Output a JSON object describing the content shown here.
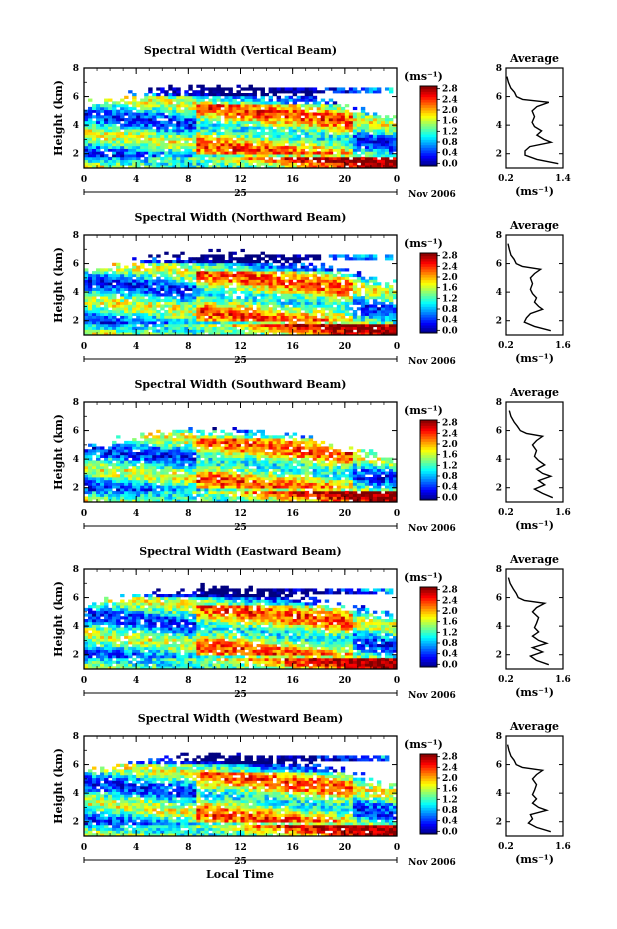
{
  "figure": {
    "xlabel": "Local Time",
    "ylabel": "Height (km)",
    "date_day": "25",
    "date_month": "Nov 2006",
    "cbar_unit": "(ms⁻¹)",
    "avg_title": "Average",
    "avg_unit": "(ms⁻¹)"
  },
  "chart_data": [
    {
      "type": "heatmap",
      "title": "Spectral Width (Vertical Beam)",
      "xlabel": "",
      "ylabel": "Height (km)",
      "x_ticks": [
        "0",
        "4",
        "8",
        "12",
        "16",
        "20",
        "0"
      ],
      "xlim": [
        0,
        24
      ],
      "ylim": [
        1,
        8
      ],
      "y_ticks": [
        "2",
        "4",
        "6",
        "8"
      ],
      "colorbar_ticks": [
        "0.0",
        "0.4",
        "0.8",
        "1.2",
        "1.6",
        "2.0",
        "2.4",
        "2.8"
      ],
      "colorbar_range": [
        0,
        3.0
      ],
      "average_profile": {
        "title": "Average",
        "xlabel": "(ms⁻¹)",
        "x_ticks": [
          "0.2",
          "1.4"
        ],
        "xlim": [
          0.2,
          1.4
        ],
        "y_ticks": [
          "2",
          "4",
          "6",
          "8"
        ],
        "ylim": [
          1,
          8
        ],
        "heights": [
          1.3,
          1.6,
          1.9,
          2.2,
          2.5,
          2.8,
          3.0,
          3.3,
          3.6,
          3.9,
          4.2,
          4.6,
          5.0,
          5.3,
          5.6,
          5.8,
          6.0,
          6.3,
          6.6,
          7.0,
          7.4
        ],
        "values": [
          1.3,
          0.85,
          0.6,
          0.6,
          0.7,
          1.15,
          1.0,
          0.85,
          0.95,
          0.8,
          0.75,
          0.8,
          0.75,
          0.85,
          1.1,
          0.55,
          0.42,
          0.38,
          0.3,
          0.25,
          0.22
        ]
      }
    },
    {
      "type": "heatmap",
      "title": "Spectral Width (Northward Beam)",
      "xlabel": "",
      "ylabel": "Height (km)",
      "x_ticks": [
        "0",
        "4",
        "8",
        "12",
        "16",
        "20",
        "0"
      ],
      "xlim": [
        0,
        24
      ],
      "ylim": [
        1,
        8
      ],
      "y_ticks": [
        "2",
        "4",
        "6",
        "8"
      ],
      "colorbar_ticks": [
        "0.0",
        "0.4",
        "0.8",
        "1.2",
        "1.6",
        "2.0",
        "2.4",
        "2.8"
      ],
      "colorbar_range": [
        0,
        3.0
      ],
      "average_profile": {
        "title": "Average",
        "xlabel": "(ms⁻¹)",
        "x_ticks": [
          "0.2",
          "1.6"
        ],
        "xlim": [
          0.2,
          1.6
        ],
        "y_ticks": [
          "2",
          "4",
          "6",
          "8"
        ],
        "ylim": [
          1,
          8
        ],
        "heights": [
          1.3,
          1.6,
          1.9,
          2.2,
          2.5,
          2.8,
          3.0,
          3.3,
          3.6,
          3.9,
          4.2,
          4.6,
          5.0,
          5.3,
          5.6,
          5.8,
          6.0,
          6.3,
          6.6,
          7.0,
          7.4
        ],
        "values": [
          1.3,
          0.9,
          0.65,
          0.7,
          0.8,
          1.1,
          1.0,
          0.9,
          0.95,
          0.85,
          0.8,
          0.85,
          0.8,
          0.9,
          1.05,
          0.6,
          0.45,
          0.4,
          0.32,
          0.28,
          0.25
        ]
      }
    },
    {
      "type": "heatmap",
      "title": "Spectral Width (Southward Beam)",
      "xlabel": "",
      "ylabel": "Height (km)",
      "x_ticks": [
        "0",
        "4",
        "8",
        "12",
        "16",
        "20",
        "0"
      ],
      "xlim": [
        0,
        24
      ],
      "ylim": [
        1,
        8
      ],
      "y_ticks": [
        "2",
        "4",
        "6",
        "8"
      ],
      "colorbar_ticks": [
        "0.0",
        "0.4",
        "0.8",
        "1.2",
        "1.6",
        "2.0",
        "2.4",
        "2.8"
      ],
      "colorbar_range": [
        0,
        3.0
      ],
      "average_profile": {
        "title": "Average",
        "xlabel": "(ms⁻¹)",
        "x_ticks": [
          "0.2",
          "1.6"
        ],
        "xlim": [
          0.2,
          1.6
        ],
        "y_ticks": [
          "2",
          "4",
          "6",
          "8"
        ],
        "ylim": [
          1,
          8
        ],
        "heights": [
          1.3,
          1.6,
          1.9,
          2.2,
          2.5,
          2.8,
          3.0,
          3.3,
          3.6,
          3.9,
          4.2,
          4.6,
          5.0,
          5.3,
          5.6,
          5.8,
          6.0,
          6.3,
          6.6,
          7.0,
          7.4
        ],
        "values": [
          1.35,
          1.1,
          0.9,
          1.15,
          1.0,
          1.3,
          1.1,
          0.95,
          1.15,
          1.0,
          0.9,
          0.95,
          0.85,
          0.95,
          1.1,
          0.7,
          0.55,
          0.48,
          0.4,
          0.32,
          0.28
        ]
      }
    },
    {
      "type": "heatmap",
      "title": "Spectral Width (Eastward Beam)",
      "xlabel": "",
      "ylabel": "Height (km)",
      "x_ticks": [
        "0",
        "4",
        "8",
        "12",
        "16",
        "20",
        "0"
      ],
      "xlim": [
        0,
        24
      ],
      "ylim": [
        1,
        8
      ],
      "y_ticks": [
        "2",
        "4",
        "6",
        "8"
      ],
      "colorbar_ticks": [
        "0.0",
        "0.4",
        "0.8",
        "1.2",
        "1.6",
        "2.0",
        "2.4",
        "2.8"
      ],
      "colorbar_range": [
        0,
        3.0
      ],
      "average_profile": {
        "title": "Average",
        "xlabel": "(ms⁻¹)",
        "x_ticks": [
          "0.2",
          "1.6"
        ],
        "xlim": [
          0.2,
          1.6
        ],
        "y_ticks": [
          "2",
          "4",
          "6",
          "8"
        ],
        "ylim": [
          1,
          8
        ],
        "heights": [
          1.3,
          1.6,
          1.9,
          2.2,
          2.5,
          2.8,
          3.0,
          3.3,
          3.6,
          3.9,
          4.2,
          4.6,
          5.0,
          5.3,
          5.6,
          5.8,
          6.0,
          6.3,
          6.6,
          7.0,
          7.4
        ],
        "values": [
          1.25,
          0.95,
          0.8,
          1.1,
          0.85,
          1.2,
          1.0,
          0.85,
          1.0,
          0.9,
          0.95,
          1.0,
          0.85,
          0.95,
          1.15,
          0.65,
          0.5,
          0.45,
          0.38,
          0.3,
          0.26
        ]
      }
    },
    {
      "type": "heatmap",
      "title": "Spectral Width (Westward Beam)",
      "xlabel": "Local Time",
      "ylabel": "Height (km)",
      "x_ticks": [
        "0",
        "4",
        "8",
        "12",
        "16",
        "20",
        "0"
      ],
      "xlim": [
        0,
        24
      ],
      "ylim": [
        1,
        8
      ],
      "y_ticks": [
        "2",
        "4",
        "6",
        "8"
      ],
      "colorbar_ticks": [
        "0.0",
        "0.4",
        "0.8",
        "1.2",
        "1.6",
        "2.0",
        "2.4",
        "2.8"
      ],
      "colorbar_range": [
        0,
        3.0
      ],
      "average_profile": {
        "title": "Average",
        "xlabel": "(ms⁻¹)",
        "x_ticks": [
          "0.2",
          "1.6"
        ],
        "xlim": [
          0.2,
          1.6
        ],
        "y_ticks": [
          "2",
          "4",
          "6",
          "8"
        ],
        "ylim": [
          1,
          8
        ],
        "heights": [
          1.3,
          1.6,
          1.9,
          2.2,
          2.5,
          2.8,
          3.0,
          3.3,
          3.6,
          3.9,
          4.2,
          4.6,
          5.0,
          5.3,
          5.6,
          5.8,
          6.0,
          6.3,
          6.6,
          7.0,
          7.4
        ],
        "values": [
          1.3,
          0.95,
          0.75,
          0.85,
          0.8,
          1.2,
          1.0,
          0.85,
          0.95,
          0.85,
          0.9,
          0.95,
          0.85,
          0.95,
          1.1,
          0.6,
          0.45,
          0.4,
          0.32,
          0.27,
          0.24
        ]
      }
    }
  ]
}
